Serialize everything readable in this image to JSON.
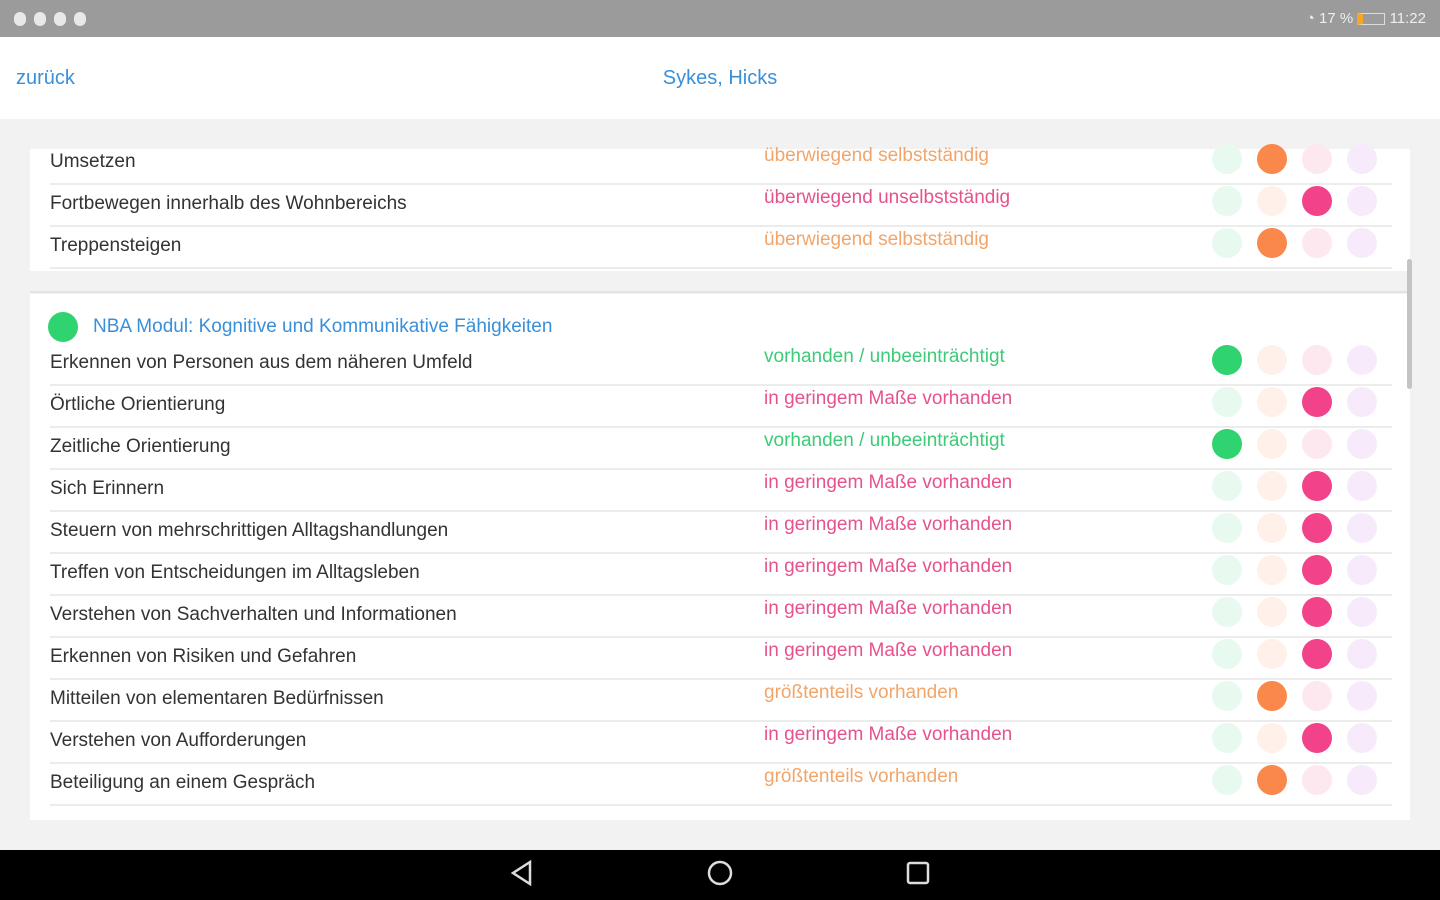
{
  "status_bar": {
    "battery": "17 %",
    "time": "11:22"
  },
  "header": {
    "back_label": "zurück",
    "title": "Sykes, Hicks"
  },
  "colors": {
    "green": "#2fd36f",
    "orange": "#f9884a",
    "pink": "#f2438a",
    "purple": "#f7e6fb",
    "green_faint": "#e8faef",
    "orange_faint": "#fff1ea",
    "pink_faint": "#fde8f0",
    "purple_faint": "#f7ebfb"
  },
  "section_mobility": {
    "rows": [
      {
        "label": "Umsetzen",
        "value": "überwiegend selbstständig",
        "level": 1
      },
      {
        "label": "Fortbewegen innerhalb des Wohnbereichs",
        "value": "überwiegend unselbstständig",
        "level": 2
      },
      {
        "label": "Treppensteigen",
        "value": "überwiegend selbstständig",
        "level": 1
      }
    ]
  },
  "section_cognition": {
    "title": "NBA Modul: Kognitive und Kommunikative Fähigkeiten",
    "status_color": "#2fd36f",
    "rows": [
      {
        "label": "Erkennen von Personen aus dem näheren Umfeld",
        "value": "vorhanden / unbeeinträchtigt",
        "level": 0
      },
      {
        "label": "Örtliche Orientierung",
        "value": "in geringem Maße vorhanden",
        "level": 2
      },
      {
        "label": "Zeitliche Orientierung",
        "value": "vorhanden / unbeeinträchtigt",
        "level": 0
      },
      {
        "label": "Sich Erinnern",
        "value": "in geringem Maße vorhanden",
        "level": 2
      },
      {
        "label": "Steuern von mehrschrittigen Alltagshandlungen",
        "value": "in geringem Maße vorhanden",
        "level": 2
      },
      {
        "label": "Treffen von Entscheidungen im Alltagsleben",
        "value": "in geringem Maße vorhanden",
        "level": 2
      },
      {
        "label": "Verstehen von Sachverhalten und Informationen",
        "value": "in geringem Maße vorhanden",
        "level": 2
      },
      {
        "label": "Erkennen von Risiken und Gefahren",
        "value": "in geringem Maße vorhanden",
        "level": 2
      },
      {
        "label": "Mitteilen von elementaren Bedürfnissen",
        "value": "größtenteils vorhanden",
        "level": 1
      },
      {
        "label": "Verstehen von Aufforderungen",
        "value": "in geringem Maße vorhanden",
        "level": 2
      },
      {
        "label": "Beteiligung an einem Gespräch",
        "value": "größtenteils vorhanden",
        "level": 1
      }
    ]
  }
}
